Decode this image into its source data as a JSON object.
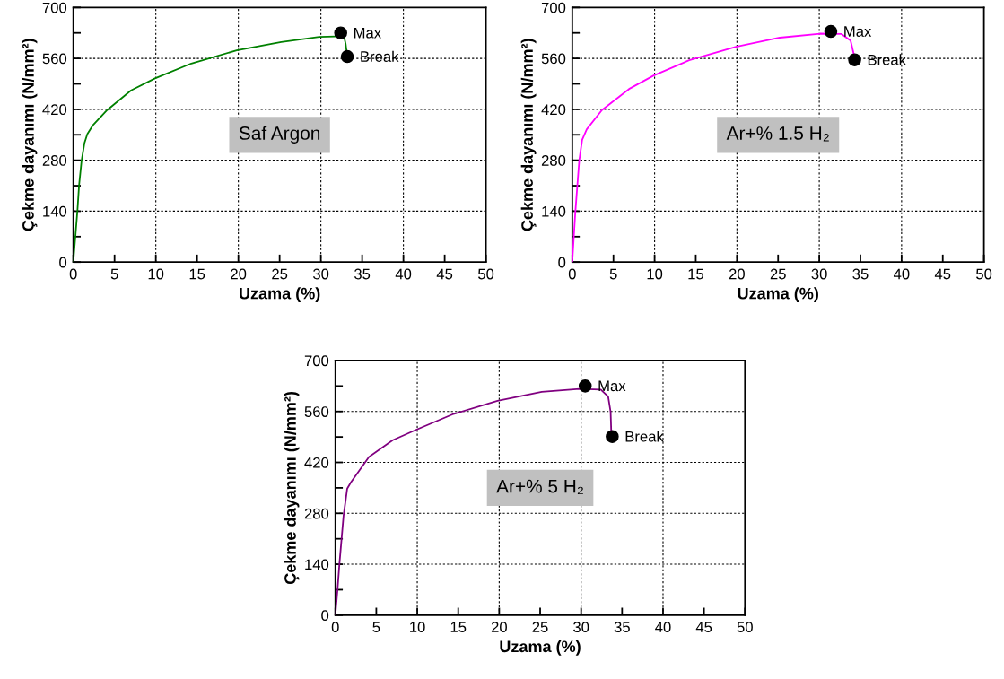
{
  "chart_data": [
    {
      "type": "line",
      "xlabel": "Uzama (%)",
      "ylabel": "Çekme dayanımı (N/mm²)",
      "xlim": [
        0,
        50
      ],
      "ylim": [
        0,
        700
      ],
      "grid": true,
      "xticks": [
        0,
        5,
        10,
        15,
        20,
        25,
        30,
        35,
        40,
        45,
        50
      ],
      "yticks": [
        0,
        {
          "value": 70,
          "label": null
        },
        140,
        {
          "value": 210,
          "label": null
        },
        280,
        {
          "value": 350,
          "label": null
        },
        420,
        {
          "value": 490,
          "label": null
        },
        560,
        {
          "value": 630,
          "label": null
        },
        700
      ],
      "series": [
        {
          "color": "#008000",
          "marker": "none",
          "x": [
            0,
            0.25,
            0.5,
            0.7,
            1.0,
            1.35,
            1.7,
            2.4,
            4.1,
            7.0,
            9.9,
            14.3,
            19.8,
            25.2,
            29.8,
            32.8,
            33.0,
            33.2
          ],
          "values": [
            0,
            70,
            141,
            211,
            278,
            327,
            352,
            377,
            418,
            472,
            505,
            546,
            582,
            605,
            619,
            621,
            600,
            565
          ]
        },
        {
          "type": "scatter",
          "color": "#000000",
          "marker": "circle",
          "x": [
            32.4,
            33.2
          ],
          "values": [
            630,
            565
          ]
        }
      ],
      "annotations": [
        "Saf Argon",
        {
          "text": "Max",
          "x": 32.4,
          "y": 630
        },
        {
          "text": "Break",
          "x": 33.2,
          "y": 565
        }
      ]
    },
    {
      "type": "line",
      "xlabel": "Uzama (%)",
      "ylabel": "Çekme dayanımı (N/mm²)",
      "xlim": [
        0,
        50
      ],
      "ylim": [
        0,
        700
      ],
      "grid": true,
      "xticks": [
        0,
        5,
        10,
        15,
        20,
        25,
        30,
        35,
        40,
        45,
        50
      ],
      "yticks": [
        0,
        {
          "value": 70,
          "label": null
        },
        140,
        {
          "value": 210,
          "label": null
        },
        280,
        {
          "value": 350,
          "label": null
        },
        420,
        {
          "value": 490,
          "label": null
        },
        560,
        {
          "value": 630,
          "label": null
        },
        700
      ],
      "series": [
        {
          "color": "#ff00ff",
          "marker": "none",
          "x": [
            0,
            0.37,
            0.84,
            1.2,
            1.76,
            3.6,
            6.9,
            9.9,
            14.2,
            19.9,
            25.2,
            30.1,
            32.7,
            33.8,
            34.2
          ],
          "values": [
            0,
            137,
            278,
            336,
            365,
            418,
            476,
            513,
            555,
            592,
            617,
            628,
            627,
            609,
            571
          ]
        },
        {
          "type": "scatter",
          "color": "#000000",
          "marker": "circle",
          "x": [
            31.4,
            34.3
          ],
          "values": [
            634,
            556
          ]
        }
      ],
      "annotations": [
        "Ar+% 1.5 H₂",
        {
          "text": "Max",
          "x": 31.4,
          "y": 634
        },
        {
          "text": "Break",
          "x": 34.3,
          "y": 556
        }
      ]
    },
    {
      "type": "line",
      "xlabel": "Uzama (%)",
      "ylabel": "Çekme dayanımı (N/mm²)",
      "xlim": [
        0,
        50
      ],
      "ylim": [
        0,
        700
      ],
      "grid": true,
      "xticks": [
        0,
        5,
        10,
        15,
        20,
        25,
        30,
        35,
        40,
        45,
        50
      ],
      "yticks": [
        0,
        {
          "value": 70,
          "label": null
        },
        140,
        {
          "value": 210,
          "label": null
        },
        280,
        {
          "value": 350,
          "label": null
        },
        420,
        {
          "value": 490,
          "label": null
        },
        560,
        {
          "value": 630,
          "label": null
        },
        700
      ],
      "series": [
        {
          "color": "#800080",
          "marker": "none",
          "x": [
            0,
            0.25,
            0.5,
            1.0,
            1.45,
            1.9,
            4.1,
            7.0,
            9.9,
            14.3,
            19.8,
            25.2,
            29.8,
            32.4,
            33.3,
            33.6,
            33.7
          ],
          "values": [
            0,
            66,
            141,
            273,
            348,
            365,
            435,
            481,
            510,
            552,
            589,
            614,
            622,
            620,
            601,
            559,
            489
          ]
        },
        {
          "type": "scatter",
          "color": "#000000",
          "marker": "circle",
          "x": [
            30.5,
            33.8
          ],
          "values": [
            630,
            491
          ]
        }
      ],
      "annotations": [
        "Ar+% 5 H₂",
        {
          "text": "Max",
          "x": 30.5,
          "y": 630
        },
        {
          "text": "Break",
          "x": 33.8,
          "y": 491
        }
      ]
    }
  ]
}
